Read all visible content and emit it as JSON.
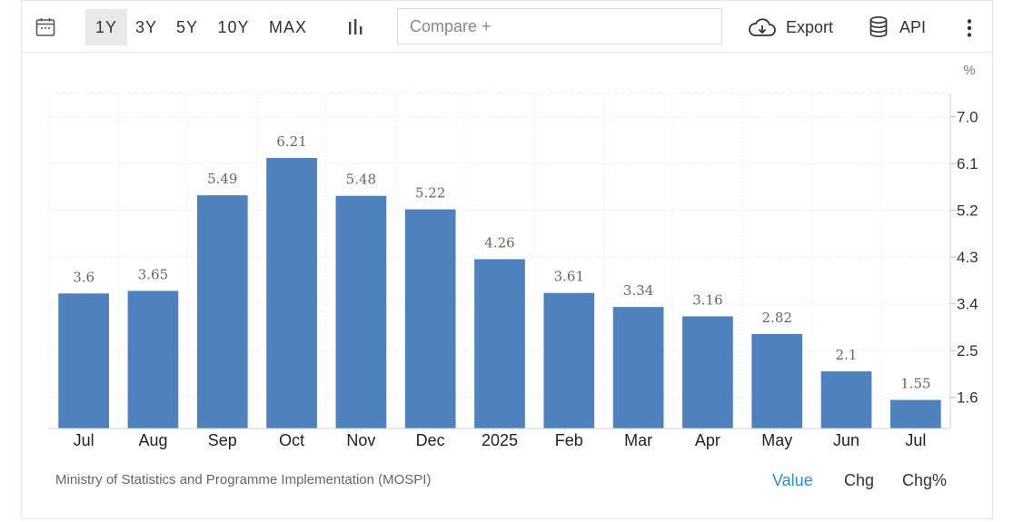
{
  "toolbar": {
    "ranges": [
      "1Y",
      "3Y",
      "5Y",
      "10Y",
      "MAX"
    ],
    "active_range": "1Y",
    "compare_placeholder": "Compare +",
    "export_label": "Export",
    "api_label": "API",
    "icons": {
      "calendar": "calendar-icon",
      "chart_type": "bar-chart-icon",
      "export": "cloud-download-icon",
      "api": "database-icon",
      "more": "more-vertical-icon"
    }
  },
  "chart_data": {
    "type": "bar",
    "unit": "%",
    "categories": [
      "Jul",
      "Aug",
      "Sep",
      "Oct",
      "Nov",
      "Dec",
      "2025",
      "Feb",
      "Mar",
      "Apr",
      "May",
      "Jun",
      "Jul"
    ],
    "values": [
      3.6,
      3.65,
      5.49,
      6.21,
      5.48,
      5.22,
      4.26,
      3.61,
      3.34,
      3.16,
      2.82,
      2.1,
      1.55
    ],
    "value_labels": [
      "3.6",
      "3.65",
      "5.49",
      "6.21",
      "5.48",
      "5.22",
      "4.26",
      "3.61",
      "3.34",
      "3.16",
      "2.82",
      "2.1",
      "1.55"
    ],
    "yticks": [
      "7.0",
      "6.1",
      "5.2",
      "4.3",
      "3.4",
      "2.5",
      "1.6"
    ],
    "ylim": [
      1.0,
      7.45
    ],
    "grid": true,
    "axis_position": "right",
    "bar_color": "#4f81bd"
  },
  "footer": {
    "source": "Ministry of Statistics and Programme Implementation (MOSPI)",
    "tabs": [
      "Value",
      "Chg",
      "Chg%"
    ],
    "active_tab": "Value",
    "active_color": "#2a8fd6"
  }
}
